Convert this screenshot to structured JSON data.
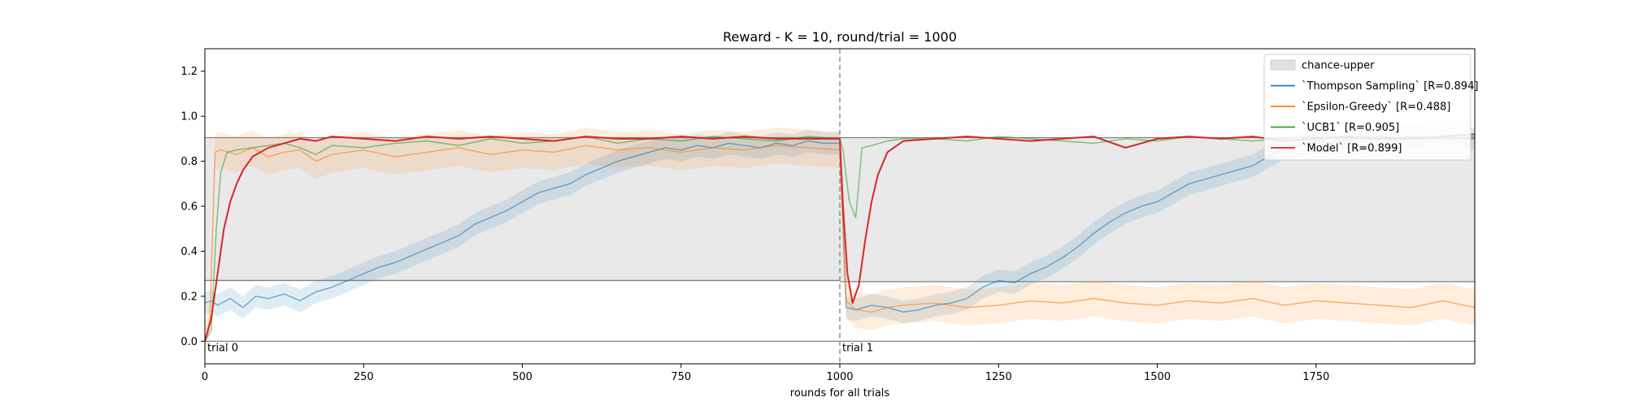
{
  "chart_data": {
    "type": "line",
    "title": "Reward - K = 10, round/trial = 1000",
    "xlabel": "rounds for all trials",
    "ylabel": "",
    "xlim": [
      0,
      2000
    ],
    "ylim": [
      -0.1,
      1.3
    ],
    "xticks": [
      "0",
      "250",
      "500",
      "750",
      "1000",
      "1250",
      "1500",
      "1750"
    ],
    "yticks": [
      "0.0",
      "0.2",
      "0.4",
      "0.6",
      "0.8",
      "1.0",
      "1.2"
    ],
    "grid": false,
    "legend_position": "top-right",
    "bands": [
      {
        "name": "chance-upper",
        "color": "#e0e0e0",
        "segments": [
          {
            "x": [
              0,
              1000
            ],
            "lower": 0.27,
            "upper": 0.905
          },
          {
            "x": [
              1000,
              2000
            ],
            "lower": 0.265,
            "upper": 0.905
          }
        ]
      }
    ],
    "reference_lines": [
      {
        "name": "upper",
        "value": 0.905
      },
      {
        "name": "lower",
        "segments": [
          {
            "x": [
              0,
              1000
            ],
            "value": 0.27
          },
          {
            "x": [
              1000,
              2000
            ],
            "value": 0.265
          }
        ]
      },
      {
        "name": "zero",
        "value": 0.0
      }
    ],
    "trial_boundaries": [
      {
        "x": 1000
      }
    ],
    "annotations": [
      {
        "text": "trial 0",
        "x": 0,
        "y": 0.0
      },
      {
        "text": "trial 1",
        "x": 1000,
        "y": 0.0
      }
    ],
    "series": [
      {
        "name": "`Thompson Sampling` [R=0.894]",
        "color": "#1f77b4",
        "band": 0.05,
        "x": [
          0,
          10,
          20,
          40,
          60,
          80,
          100,
          125,
          150,
          175,
          200,
          225,
          250,
          275,
          300,
          325,
          350,
          375,
          400,
          425,
          450,
          475,
          500,
          525,
          550,
          575,
          600,
          625,
          650,
          675,
          700,
          725,
          750,
          775,
          800,
          825,
          850,
          875,
          900,
          925,
          950,
          975,
          1000,
          1010,
          1025,
          1050,
          1075,
          1100,
          1125,
          1150,
          1175,
          1200,
          1225,
          1250,
          1275,
          1300,
          1325,
          1350,
          1375,
          1400,
          1425,
          1450,
          1475,
          1500,
          1525,
          1550,
          1575,
          1600,
          1625,
          1650,
          1675,
          1700,
          1725,
          1750,
          1775,
          1800,
          1850,
          1900,
          1950,
          2000
        ],
        "y": [
          0.17,
          0.18,
          0.16,
          0.19,
          0.15,
          0.2,
          0.19,
          0.21,
          0.18,
          0.22,
          0.24,
          0.27,
          0.3,
          0.33,
          0.35,
          0.38,
          0.41,
          0.44,
          0.47,
          0.52,
          0.55,
          0.58,
          0.62,
          0.66,
          0.68,
          0.7,
          0.74,
          0.77,
          0.8,
          0.82,
          0.84,
          0.86,
          0.85,
          0.87,
          0.86,
          0.88,
          0.87,
          0.86,
          0.88,
          0.87,
          0.89,
          0.88,
          0.88,
          0.15,
          0.14,
          0.16,
          0.15,
          0.13,
          0.14,
          0.16,
          0.17,
          0.19,
          0.24,
          0.27,
          0.26,
          0.3,
          0.33,
          0.37,
          0.42,
          0.48,
          0.53,
          0.57,
          0.6,
          0.62,
          0.66,
          0.7,
          0.72,
          0.74,
          0.76,
          0.78,
          0.82,
          0.86,
          0.87,
          0.89,
          0.88,
          0.9,
          0.9,
          0.91,
          0.9,
          0.9
        ]
      },
      {
        "name": "`Epsilon-Greedy` [R=0.488]",
        "color": "#ff7f0e",
        "band": 0.08,
        "x": [
          0,
          8,
          16,
          25,
          50,
          75,
          100,
          125,
          150,
          175,
          200,
          250,
          300,
          350,
          400,
          450,
          500,
          550,
          600,
          650,
          700,
          750,
          800,
          850,
          900,
          950,
          1000,
          1010,
          1025,
          1050,
          1075,
          1100,
          1150,
          1200,
          1250,
          1300,
          1350,
          1400,
          1450,
          1500,
          1550,
          1600,
          1650,
          1700,
          1750,
          1800,
          1850,
          1900,
          1950,
          2000
        ],
        "y": [
          0.0,
          0.1,
          0.84,
          0.85,
          0.83,
          0.86,
          0.82,
          0.84,
          0.85,
          0.8,
          0.83,
          0.85,
          0.82,
          0.84,
          0.86,
          0.83,
          0.85,
          0.84,
          0.87,
          0.85,
          0.86,
          0.84,
          0.86,
          0.85,
          0.87,
          0.86,
          0.85,
          0.18,
          0.14,
          0.13,
          0.15,
          0.16,
          0.17,
          0.15,
          0.16,
          0.18,
          0.17,
          0.19,
          0.17,
          0.16,
          0.18,
          0.17,
          0.19,
          0.16,
          0.18,
          0.17,
          0.16,
          0.15,
          0.18,
          0.15
        ]
      },
      {
        "name": "`UCB1` [R=0.905]",
        "color": "#2ca02c",
        "band": 0.0,
        "x": [
          0,
          10,
          18,
          25,
          35,
          50,
          75,
          100,
          125,
          150,
          175,
          200,
          250,
          300,
          350,
          400,
          450,
          500,
          550,
          600,
          650,
          700,
          750,
          800,
          850,
          900,
          950,
          1000,
          1005,
          1015,
          1025,
          1035,
          1050,
          1075,
          1100,
          1150,
          1200,
          1250,
          1300,
          1350,
          1400,
          1450,
          1500,
          1550,
          1600,
          1650,
          1700,
          1750,
          1800,
          1850,
          1900,
          1950,
          2000
        ],
        "y": [
          0.0,
          0.05,
          0.5,
          0.75,
          0.84,
          0.85,
          0.86,
          0.87,
          0.88,
          0.86,
          0.83,
          0.87,
          0.86,
          0.88,
          0.89,
          0.87,
          0.9,
          0.88,
          0.89,
          0.91,
          0.88,
          0.9,
          0.89,
          0.91,
          0.9,
          0.89,
          0.91,
          0.9,
          0.85,
          0.62,
          0.55,
          0.86,
          0.87,
          0.89,
          0.9,
          0.9,
          0.89,
          0.91,
          0.9,
          0.89,
          0.88,
          0.9,
          0.89,
          0.91,
          0.9,
          0.89,
          0.9,
          0.91,
          0.9,
          0.91,
          0.9,
          0.9,
          0.91
        ]
      },
      {
        "name": "`Model` [R=0.899]",
        "color": "#d62728",
        "band": 0.0,
        "x": [
          0,
          10,
          20,
          30,
          40,
          50,
          60,
          75,
          100,
          125,
          150,
          175,
          200,
          250,
          300,
          350,
          400,
          450,
          500,
          550,
          600,
          650,
          700,
          750,
          800,
          850,
          900,
          950,
          1000,
          1005,
          1012,
          1020,
          1030,
          1040,
          1050,
          1060,
          1075,
          1100,
          1150,
          1200,
          1250,
          1300,
          1350,
          1400,
          1450,
          1500,
          1550,
          1600,
          1650,
          1700,
          1750,
          1800,
          1850,
          1900,
          1950,
          2000
        ],
        "y": [
          0.0,
          0.1,
          0.3,
          0.5,
          0.62,
          0.7,
          0.76,
          0.82,
          0.86,
          0.88,
          0.9,
          0.89,
          0.91,
          0.9,
          0.89,
          0.91,
          0.9,
          0.91,
          0.9,
          0.89,
          0.91,
          0.9,
          0.9,
          0.91,
          0.9,
          0.91,
          0.9,
          0.9,
          0.9,
          0.6,
          0.3,
          0.17,
          0.25,
          0.45,
          0.62,
          0.74,
          0.84,
          0.89,
          0.9,
          0.91,
          0.9,
          0.89,
          0.9,
          0.91,
          0.86,
          0.9,
          0.91,
          0.9,
          0.91,
          0.89,
          0.9,
          0.91,
          0.9,
          0.9,
          0.91,
          0.92
        ]
      }
    ]
  }
}
